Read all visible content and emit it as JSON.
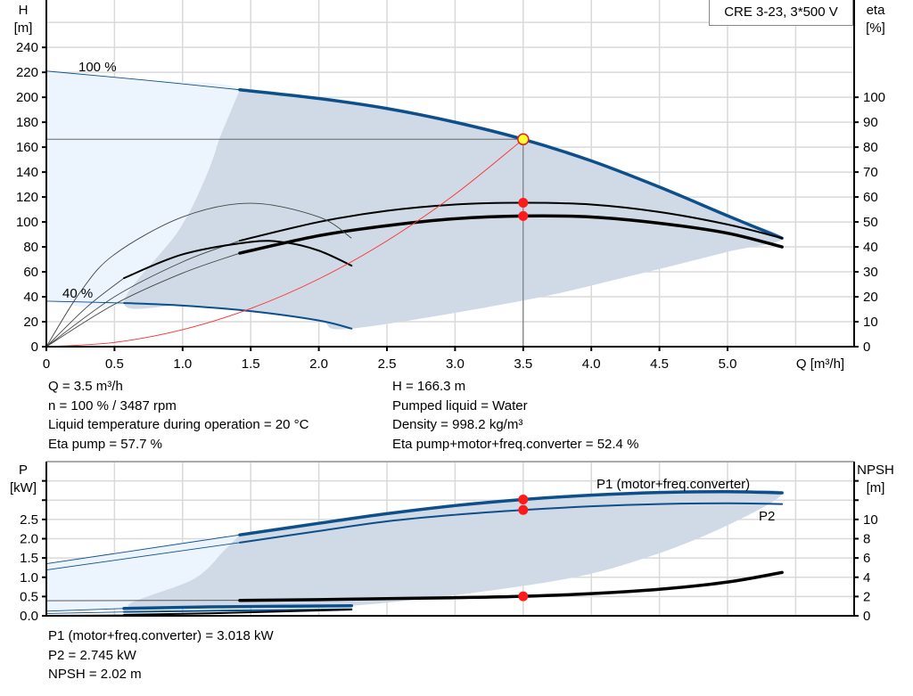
{
  "title_box": "CRE 3-23, 3*500 V",
  "colors": {
    "curve_blue": "#0d4f8b",
    "region_dark": "#cfdae6",
    "region_light": "#ecf5fd",
    "grid": "#d9d9d9",
    "system_curve": "#ff3030",
    "duty_point": "#ff1a1a",
    "op_point_fill": "#ffff33"
  },
  "info_top": {
    "left": [
      "Q = 3.5 m³/h",
      "n = 100 % / 3487 rpm",
      "Liquid temperature during operation = 20 °C",
      "Eta pump = 57.7 %"
    ],
    "right": [
      "H = 166.3 m",
      "Pumped liquid = Water",
      "Density = 998.2 kg/m³",
      "Eta pump+motor+freq.converter = 52.4 %"
    ]
  },
  "info_bottom": [
    "P1 (motor+freq.converter) = 3.018 kW",
    "P2 = 2.745 kW",
    "NPSH = 2.02 m"
  ],
  "chart_data": [
    {
      "type": "line",
      "ylabel_left": [
        "H",
        "[m]"
      ],
      "ylabel_right": [
        "eta",
        "[%]"
      ],
      "xlabel": "Q [m³/h]",
      "x_ticks": [
        "0",
        "0.5",
        "1.0",
        "1.5",
        "2.0",
        "2.5",
        "3.0",
        "3.5",
        "4.0",
        "4.5",
        "5.0"
      ],
      "y_left_ticks": [
        "0",
        "20",
        "40",
        "60",
        "80",
        "100",
        "120",
        "140",
        "160",
        "180",
        "200",
        "220",
        "240"
      ],
      "y_right_ticks": [
        "0",
        "10",
        "20",
        "30",
        "40",
        "50",
        "60",
        "70",
        "80",
        "90",
        "100"
      ],
      "xlim": [
        0,
        5.9
      ],
      "ylim_left": [
        0,
        278
      ],
      "ylim_right": [
        0,
        139
      ],
      "grid": true,
      "annotations": [
        "100 %",
        "40 %"
      ],
      "series": [
        {
          "id": "H-100",
          "axis": "left",
          "style": "blue-thick",
          "thin_until": 1.42,
          "points": [
            [
              0,
              221
            ],
            [
              0.7,
              214
            ],
            [
              1.42,
              206
            ],
            [
              2,
              199
            ],
            [
              2.5,
              191
            ],
            [
              3,
              180
            ],
            [
              3.5,
              166.3
            ],
            [
              4,
              149
            ],
            [
              4.5,
              128
            ],
            [
              5,
              105
            ],
            [
              5.4,
              87
            ]
          ]
        },
        {
          "id": "H-40",
          "axis": "left",
          "style": "blue",
          "thin_until": 0.57,
          "points": [
            [
              0,
              36.5
            ],
            [
              0.57,
              35
            ],
            [
              1,
              33
            ],
            [
              1.5,
              28.5
            ],
            [
              2,
              21
            ],
            [
              2.24,
              14.5
            ]
          ]
        },
        {
          "id": "eta-pump-100",
          "axis": "right",
          "style": "black",
          "thin_until": 1.42,
          "points": [
            [
              0,
              0
            ],
            [
              0.5,
              20
            ],
            [
              1,
              34
            ],
            [
              1.42,
              42.5
            ],
            [
              2,
              50
            ],
            [
              2.5,
              54.5
            ],
            [
              3,
              57
            ],
            [
              3.5,
              57.7
            ],
            [
              4,
              57
            ],
            [
              4.5,
              54
            ],
            [
              5,
              49
            ],
            [
              5.4,
              43.5
            ]
          ]
        },
        {
          "id": "eta-total-100",
          "axis": "right",
          "style": "black-thick",
          "thin_until": 1.42,
          "points": [
            [
              0,
              0
            ],
            [
              0.5,
              17
            ],
            [
              1,
              29.5
            ],
            [
              1.42,
              37.5
            ],
            [
              2,
              44.5
            ],
            [
              2.5,
              48.5
            ],
            [
              3,
              51.3
            ],
            [
              3.5,
              52.4
            ],
            [
              4,
              52
            ],
            [
              4.5,
              49.5
            ],
            [
              5,
              45.5
            ],
            [
              5.4,
              40
            ]
          ]
        },
        {
          "id": "eta-pump-40",
          "axis": "right",
          "style": "thin",
          "thin_until": 2.3,
          "points": [
            [
              0,
              0
            ],
            [
              0.25,
              22
            ],
            [
              0.5,
              37
            ],
            [
              1,
              52
            ],
            [
              1.5,
              57.5
            ],
            [
              2,
              52
            ],
            [
              2.24,
              43.5
            ]
          ]
        },
        {
          "id": "eta-total-40",
          "axis": "right",
          "style": "black",
          "thin_until": 0.57,
          "points": [
            [
              0,
              0
            ],
            [
              0.3,
              16
            ],
            [
              0.57,
              27.5
            ],
            [
              1,
              37
            ],
            [
              1.5,
              42
            ],
            [
              1.75,
              41.8
            ],
            [
              2,
              38.5
            ],
            [
              2.24,
              32.5
            ]
          ]
        },
        {
          "id": "system-curve",
          "axis": "left",
          "style": "red",
          "points": [
            [
              0,
              0
            ],
            [
              0.5,
              3.4
            ],
            [
              1,
              13.6
            ],
            [
              1.5,
              30.6
            ],
            [
              2,
              54.3
            ],
            [
              2.5,
              84.9
            ],
            [
              3,
              122.2
            ],
            [
              3.5,
              166.3
            ]
          ]
        }
      ],
      "regions": {
        "light": [
          [
            0,
            221
          ],
          [
            0.7,
            214
          ],
          [
            1.42,
            206
          ],
          [
            1.27,
            167
          ],
          [
            1.17,
            136
          ],
          [
            0.97,
            93
          ],
          [
            0.57,
            35
          ],
          [
            0,
            36.5
          ]
        ],
        "dark": [
          [
            1.42,
            206
          ],
          [
            2,
            199
          ],
          [
            2.5,
            191
          ],
          [
            3,
            180
          ],
          [
            3.5,
            166.3
          ],
          [
            4,
            149
          ],
          [
            4.5,
            128
          ],
          [
            5,
            105
          ],
          [
            5.4,
            87
          ],
          [
            5,
            76
          ],
          [
            4.3,
            57
          ],
          [
            3.5,
            37
          ],
          [
            2.24,
            14.5
          ],
          [
            2,
            21
          ],
          [
            1.5,
            28.5
          ],
          [
            1,
            33
          ],
          [
            0.57,
            35
          ],
          [
            0.97,
            93
          ],
          [
            1.17,
            136
          ],
          [
            1.27,
            167
          ]
        ]
      },
      "operating_point": {
        "q": 3.5,
        "h": 166.3
      },
      "duty_points": [
        {
          "axis": "right",
          "q": 3.5,
          "v": 57.7
        },
        {
          "axis": "right",
          "q": 3.5,
          "v": 52.4
        }
      ]
    },
    {
      "type": "line",
      "ylabel_left": [
        "P",
        "[kW]"
      ],
      "ylabel_right": [
        "NPSH",
        "[m]"
      ],
      "y_left_ticks": [
        "0.0",
        "0.5",
        "1.0",
        "1.5",
        "2.0",
        "2.5",
        "",
        ""
      ],
      "y_right_ticks": [
        "0",
        "2",
        "4",
        "6",
        "8",
        "10",
        "",
        ""
      ],
      "xlim": [
        0,
        5.9
      ],
      "ylim_left": [
        0,
        4
      ],
      "ylim_right": [
        0,
        16
      ],
      "grid": true,
      "legend": [
        "P1 (motor+freq.converter)",
        "P2"
      ],
      "series": [
        {
          "id": "P1-100",
          "axis": "left",
          "style": "blue-thick",
          "thin_until": 1.42,
          "points": [
            [
              0,
              1.35
            ],
            [
              1.42,
              2.1
            ],
            [
              2,
              2.4
            ],
            [
              2.5,
              2.65
            ],
            [
              3,
              2.86
            ],
            [
              3.5,
              3.018
            ],
            [
              4,
              3.13
            ],
            [
              4.5,
              3.2
            ],
            [
              5,
              3.22
            ],
            [
              5.4,
              3.19
            ]
          ]
        },
        {
          "id": "P2-100",
          "axis": "left",
          "style": "blue",
          "thin_until": 1.42,
          "points": [
            [
              0,
              1.19
            ],
            [
              1.42,
              1.9
            ],
            [
              2,
              2.2
            ],
            [
              2.5,
              2.45
            ],
            [
              3,
              2.62
            ],
            [
              3.5,
              2.745
            ],
            [
              4,
              2.84
            ],
            [
              4.5,
              2.9
            ],
            [
              5,
              2.92
            ],
            [
              5.4,
              2.9
            ]
          ]
        },
        {
          "id": "P1-40",
          "axis": "left",
          "style": "blue-thick",
          "thin_until": 0.57,
          "points": [
            [
              0,
              0.12
            ],
            [
              0.57,
              0.19
            ],
            [
              1.2,
              0.23
            ],
            [
              2.24,
              0.26
            ]
          ]
        },
        {
          "id": "P2-40",
          "axis": "left",
          "style": "blue",
          "thin_until": 0.57,
          "points": [
            [
              0,
              0.06
            ],
            [
              0.57,
              0.1
            ],
            [
              1.2,
              0.13
            ],
            [
              2.24,
              0.17
            ]
          ]
        },
        {
          "id": "NPSH-100",
          "axis": "right",
          "style": "black-thick",
          "thin_until": 1.42,
          "points": [
            [
              0,
              1.57
            ],
            [
              1.42,
              1.6
            ],
            [
              2,
              1.68
            ],
            [
              2.5,
              1.78
            ],
            [
              3,
              1.88
            ],
            [
              3.5,
              2.02
            ],
            [
              4,
              2.3
            ],
            [
              4.5,
              2.75
            ],
            [
              5,
              3.5
            ],
            [
              5.4,
              4.5
            ]
          ]
        },
        {
          "id": "NPSH-40",
          "axis": "right",
          "style": "black",
          "thin_until": 0.57,
          "points": [
            [
              0,
              0.05
            ],
            [
              0.57,
              0.1
            ],
            [
              1.2,
              0.25
            ],
            [
              2.24,
              0.65
            ]
          ]
        }
      ],
      "regions": {
        "light": [
          [
            0,
            1.35
          ],
          [
            1.42,
            2.1
          ],
          [
            1.29,
            1.64
          ],
          [
            1.08,
            0.95
          ],
          [
            0.6,
            0.25
          ],
          [
            0.57,
            0.19
          ],
          [
            0,
            0.12
          ]
        ],
        "dark": [
          [
            1.42,
            2.1
          ],
          [
            2,
            2.4
          ],
          [
            2.5,
            2.65
          ],
          [
            3,
            2.86
          ],
          [
            3.5,
            3.018
          ],
          [
            4,
            3.13
          ],
          [
            4.5,
            3.2
          ],
          [
            5,
            3.22
          ],
          [
            5.4,
            3.19
          ],
          [
            5.03,
            2.4
          ],
          [
            4.42,
            1.53
          ],
          [
            3.69,
            0.88
          ],
          [
            2.24,
            0.26
          ],
          [
            1.2,
            0.23
          ],
          [
            0.6,
            0.25
          ],
          [
            1.08,
            0.95
          ],
          [
            1.29,
            1.64
          ]
        ]
      },
      "duty_points": [
        {
          "axis": "left",
          "q": 3.5,
          "v": 3.018
        },
        {
          "axis": "left",
          "q": 3.5,
          "v": 2.745
        },
        {
          "axis": "right",
          "q": 3.5,
          "v": 2.02
        }
      ]
    }
  ]
}
